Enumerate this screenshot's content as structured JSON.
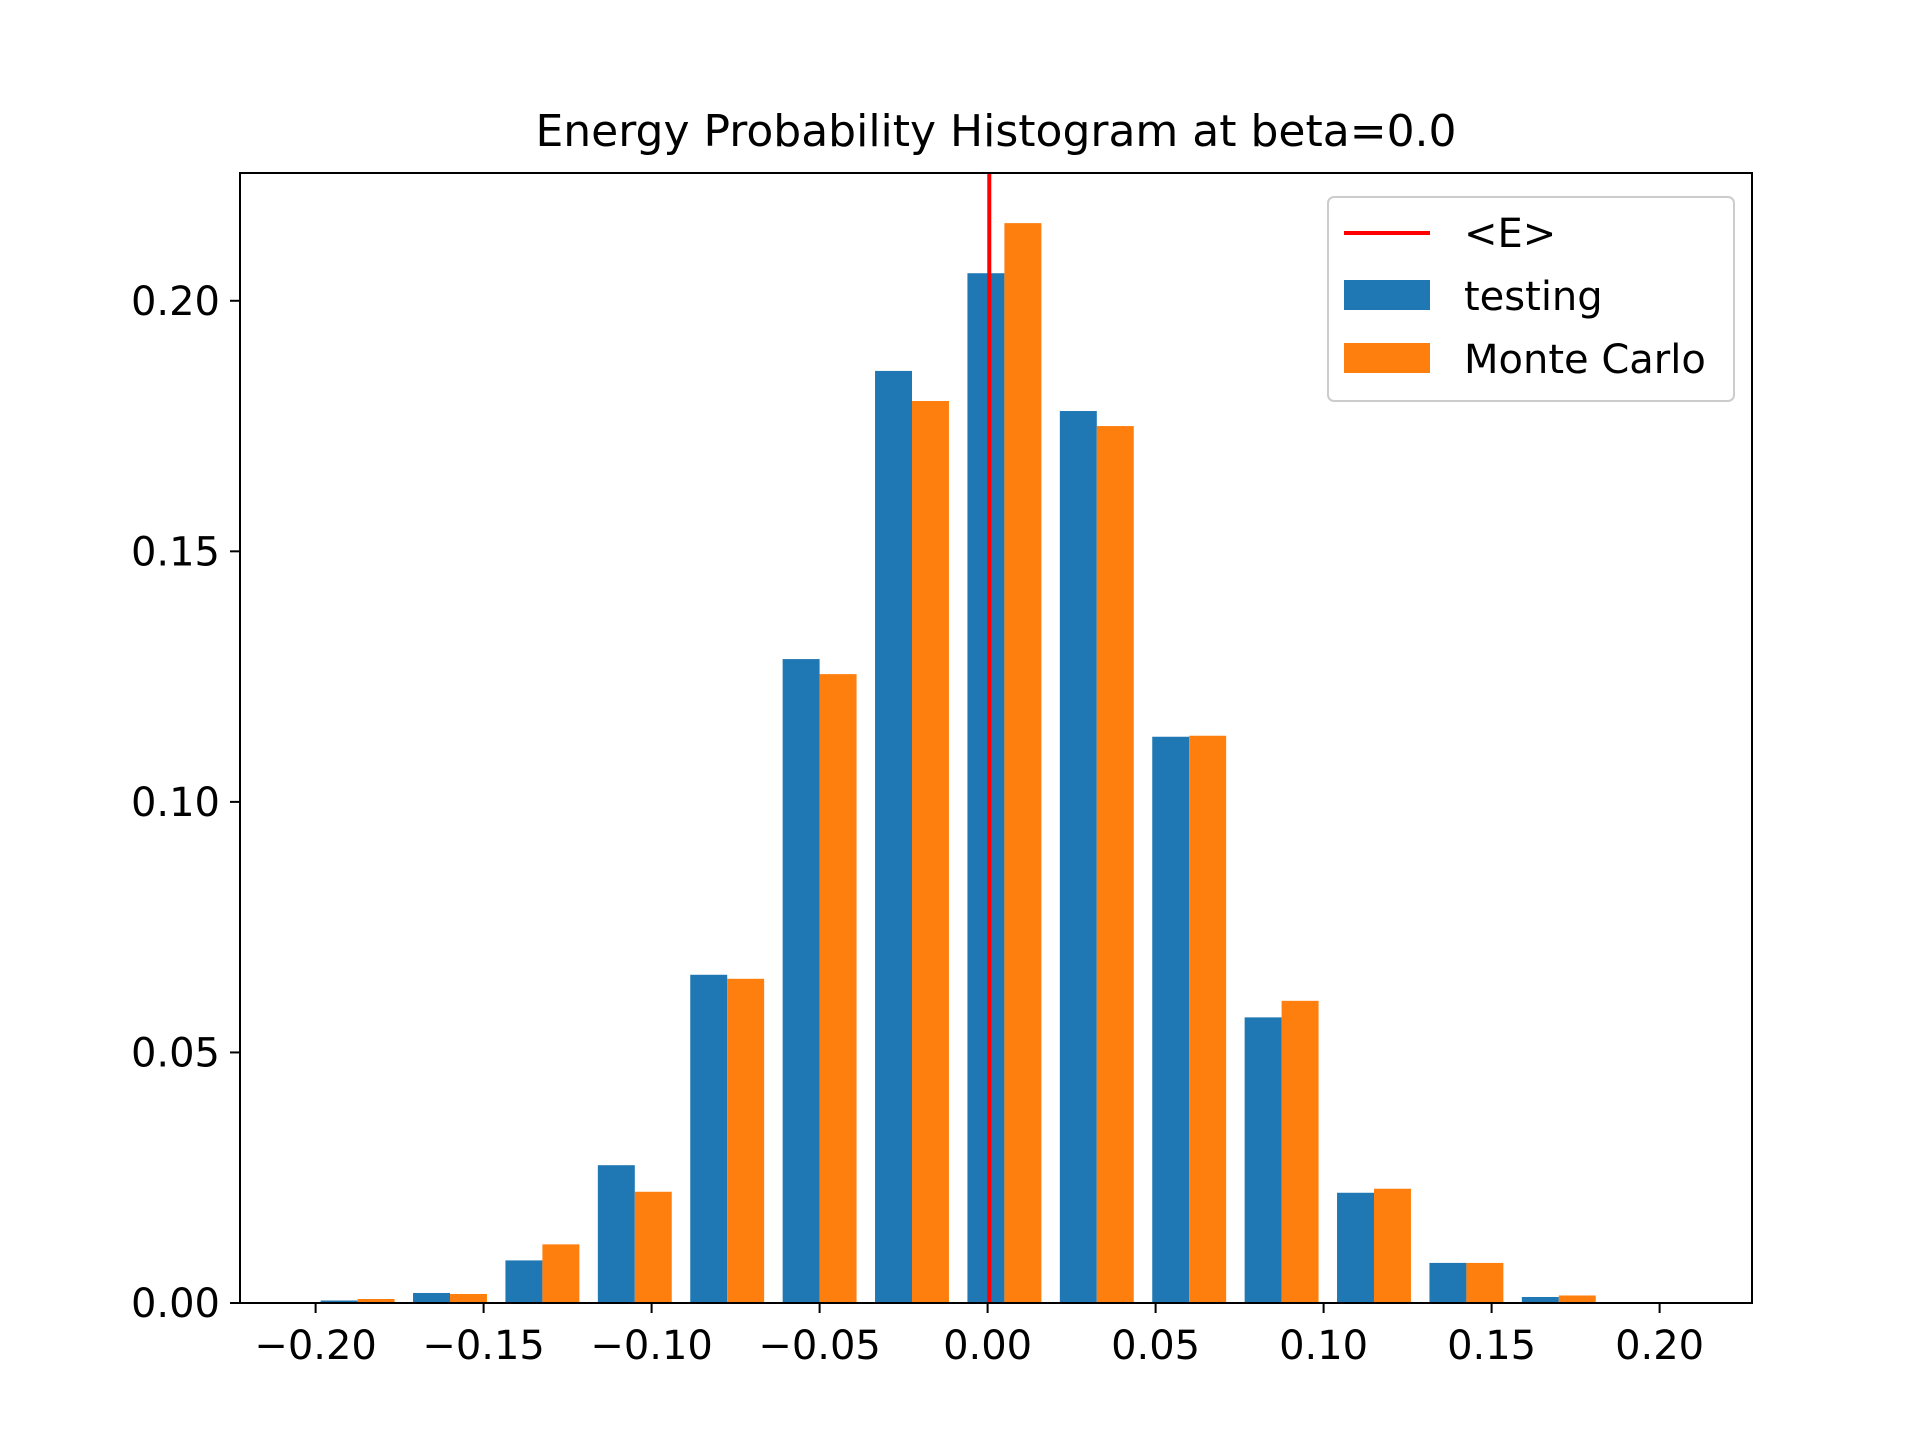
{
  "chart_data": {
    "type": "bar",
    "title": "Energy Probability Histogram at beta=0.0",
    "xlabel": "",
    "ylabel": "",
    "xlim": [
      -0.2225,
      0.2275
    ],
    "ylim": [
      0,
      0.2255
    ],
    "xticks": [
      -0.2,
      -0.15,
      -0.1,
      -0.05,
      0.0,
      0.05,
      0.1,
      0.15,
      0.2
    ],
    "xtick_labels": [
      "−0.20",
      "−0.15",
      "−0.10",
      "−0.05",
      "0.00",
      "0.05",
      "0.10",
      "0.15",
      "0.20"
    ],
    "yticks": [
      0.0,
      0.05,
      0.1,
      0.15,
      0.2
    ],
    "ytick_labels": [
      "0.00",
      "0.05",
      "0.10",
      "0.15",
      "0.20"
    ],
    "bin_width": 0.0275,
    "bin_centers": [
      -0.1875,
      -0.16,
      -0.1325,
      -0.105,
      -0.0775,
      -0.05,
      -0.0225,
      0.005,
      0.0325,
      0.06,
      0.0875,
      0.115,
      0.1425,
      0.17
    ],
    "series": [
      {
        "name": "testing",
        "color": "#1f77b4",
        "values": [
          0.0005,
          0.002,
          0.0085,
          0.0275,
          0.0655,
          0.1285,
          0.186,
          0.2055,
          0.178,
          0.113,
          0.057,
          0.022,
          0.008,
          0.0012
        ]
      },
      {
        "name": "Monte Carlo",
        "color": "#ff7f0e",
        "values": [
          0.0008,
          0.0018,
          0.0117,
          0.0222,
          0.0647,
          0.1255,
          0.18,
          0.2155,
          0.175,
          0.1132,
          0.0603,
          0.0228,
          0.008,
          0.0015
        ]
      }
    ],
    "mean_line": {
      "label": "<E>",
      "x": 0.0005,
      "color": "#ff0000"
    },
    "legend": {
      "position": "top-right",
      "entries": [
        "<E>",
        "testing",
        "Monte Carlo"
      ]
    },
    "grid": false
  }
}
